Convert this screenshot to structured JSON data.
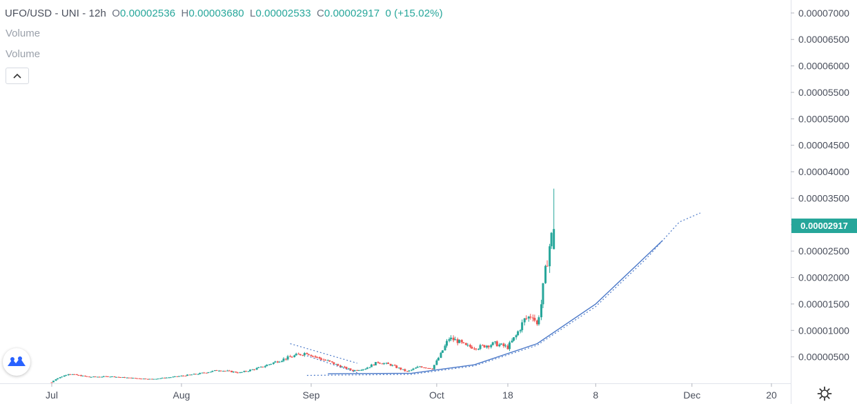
{
  "legend": {
    "symbol": "UFO/USD - UNI - 12h",
    "o_label": "O",
    "o_value": "0.00002536",
    "h_label": "H",
    "h_value": "0.00003680",
    "l_label": "L",
    "l_value": "0.00002533",
    "c_label": "C",
    "c_value": "0.00002917",
    "change": "0 (+15.02%)"
  },
  "volume_labels": [
    "Volume",
    "Volume"
  ],
  "last_price": "0.00002917",
  "colors": {
    "up": "#26a69a",
    "down": "#ef5350",
    "trendline": "#4a78c8",
    "price_tag": "#26a69a"
  },
  "icons": [
    "chevron-up-icon",
    "tradingview-logo-icon",
    "gear-icon"
  ],
  "chart_data": {
    "type": "candlestick",
    "ylim": [
      0,
      7.22e-05
    ],
    "y_ticks": [
      {
        "value": 5e-06,
        "label": "0.00000500"
      },
      {
        "value": 1e-05,
        "label": "0.00001000"
      },
      {
        "value": 1.5e-05,
        "label": "0.00001500"
      },
      {
        "value": 2e-05,
        "label": "0.00002000"
      },
      {
        "value": 2.5e-05,
        "label": "0.00002500"
      },
      {
        "value": 3e-05,
        "label": "0.00003000"
      },
      {
        "value": 3.5e-05,
        "label": "0.00003500"
      },
      {
        "value": 4e-05,
        "label": "0.00004000"
      },
      {
        "value": 4.5e-05,
        "label": "0.00004500"
      },
      {
        "value": 5e-05,
        "label": "0.00005000"
      },
      {
        "value": 5.5e-05,
        "label": "0.00005500"
      },
      {
        "value": 6e-05,
        "label": "0.00006000"
      },
      {
        "value": 6.5e-05,
        "label": "0.00006500"
      },
      {
        "value": 7e-05,
        "label": "0.00007000"
      }
    ],
    "x_start": "2021-07-01",
    "x_end": "2021-11-22",
    "x_ticks": [
      {
        "date": "2021-07-01",
        "label": "Jul"
      },
      {
        "date": "2021-08-01",
        "label": "Aug"
      },
      {
        "date": "2021-09-01",
        "label": "Sep"
      },
      {
        "date": "2021-10-01",
        "label": "Oct"
      },
      {
        "date": "2021-10-18",
        "label": "18"
      },
      {
        "date": "2021-11-08",
        "label": "8"
      },
      {
        "date": "2021-12-01",
        "label": "Dec"
      },
      {
        "date": "2021-12-20",
        "label": "20"
      }
    ],
    "close_path": [
      [
        "2021-07-01",
        2e-07
      ],
      [
        "2021-07-02",
        8e-07
      ],
      [
        "2021-07-05",
        1.8e-06
      ],
      [
        "2021-07-10",
        1.2e-06
      ],
      [
        "2021-07-15",
        1.3e-06
      ],
      [
        "2021-07-20",
        1e-06
      ],
      [
        "2021-07-25",
        8e-07
      ],
      [
        "2021-07-30",
        1.2e-06
      ],
      [
        "2021-08-05",
        1.8e-06
      ],
      [
        "2021-08-10",
        2.5e-06
      ],
      [
        "2021-08-15",
        2e-06
      ],
      [
        "2021-08-20",
        3e-06
      ],
      [
        "2021-08-24",
        4.2e-06
      ],
      [
        "2021-08-28",
        5.2e-06
      ],
      [
        "2021-08-31",
        5.8e-06
      ],
      [
        "2021-09-02",
        5e-06
      ],
      [
        "2021-09-05",
        4.2e-06
      ],
      [
        "2021-09-08",
        3.2e-06
      ],
      [
        "2021-09-11",
        2.4e-06
      ],
      [
        "2021-09-14",
        2.8e-06
      ],
      [
        "2021-09-17",
        4e-06
      ],
      [
        "2021-09-20",
        3.5e-06
      ],
      [
        "2021-09-24",
        2.2e-06
      ],
      [
        "2021-09-27",
        3.2e-06
      ],
      [
        "2021-09-30",
        2.8e-06
      ],
      [
        "2021-10-02",
        5.5e-06
      ],
      [
        "2021-10-04",
        8.5e-06
      ],
      [
        "2021-10-06",
        8e-06
      ],
      [
        "2021-10-08",
        7e-06
      ],
      [
        "2021-10-11",
        6.8e-06
      ],
      [
        "2021-10-13",
        7.2e-06
      ],
      [
        "2021-10-15",
        7.5e-06
      ],
      [
        "2021-10-18",
        6.8e-06
      ],
      [
        "2021-10-20",
        9e-06
      ],
      [
        "2021-10-22",
        1.2e-05
      ],
      [
        "2021-10-24",
        1.3e-05
      ],
      [
        "2021-10-25",
        1.1e-05
      ],
      [
        "2021-10-26",
        1.5e-05
      ],
      [
        "2021-10-27",
        2.1e-05
      ],
      [
        "2021-10-28",
        2.6e-05
      ],
      [
        "2021-10-29",
        2.92e-05
      ]
    ],
    "trendlines": [
      {
        "name": "curve-solid",
        "style": "solid",
        "points": [
          [
            "2021-09-05",
            1.8e-06
          ],
          [
            "2021-09-25",
            1.9e-06
          ],
          [
            "2021-10-10",
            3.5e-06
          ],
          [
            "2021-10-25",
            7.5e-06
          ],
          [
            "2021-11-08",
            1.5e-05
          ],
          [
            "2021-11-20",
            2.4e-05
          ],
          [
            "2021-11-24",
            2.7e-05
          ]
        ]
      },
      {
        "name": "curve-dotted",
        "style": "dotted",
        "points": [
          [
            "2021-08-31",
            1.5e-06
          ],
          [
            "2021-09-25",
            1.7e-06
          ],
          [
            "2021-10-10",
            3.3e-06
          ],
          [
            "2021-10-25",
            7.2e-06
          ],
          [
            "2021-11-08",
            1.45e-05
          ],
          [
            "2021-11-20",
            2.35e-05
          ],
          [
            "2021-11-28",
            3.05e-05
          ],
          [
            "2021-12-03",
            3.22e-05
          ]
        ]
      },
      {
        "name": "wedge-upper",
        "style": "dotted",
        "points": [
          [
            "2021-08-27",
            7.5e-06
          ],
          [
            "2021-09-12",
            3.8e-06
          ]
        ]
      },
      {
        "name": "wedge-lower",
        "style": "dotted",
        "points": [
          [
            "2021-08-31",
            5.2e-06
          ],
          [
            "2021-09-12",
            2e-06
          ]
        ]
      }
    ]
  }
}
